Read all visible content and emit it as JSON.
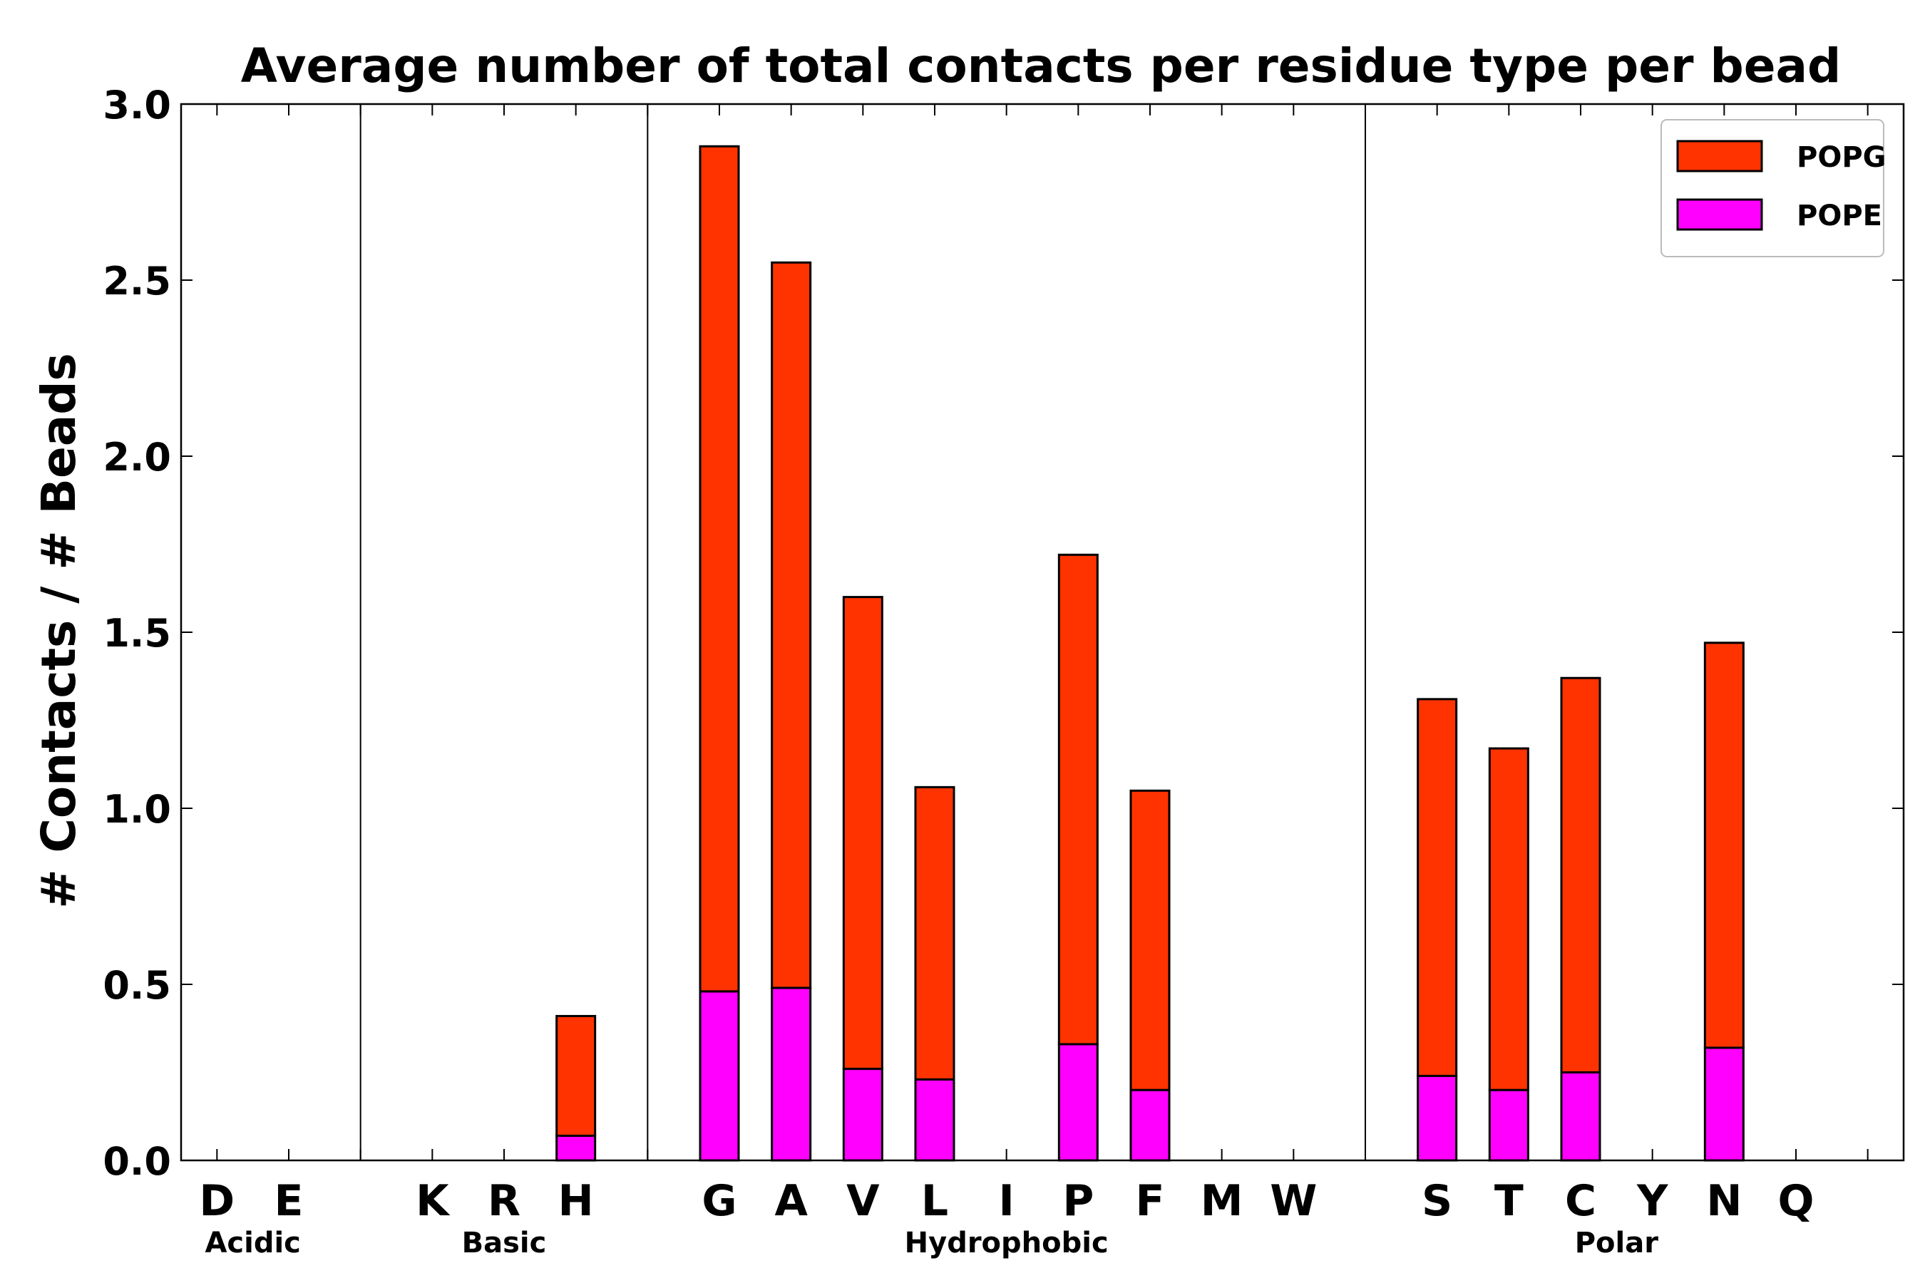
{
  "chart_data": {
    "type": "bar",
    "stacked": true,
    "title": "Average number of total contacts per residue type per bead",
    "xlabel": "",
    "ylabel": "# Contacts / # Beads",
    "ylim": [
      0,
      3.0
    ],
    "yticks": [
      "0.0",
      "0.5",
      "1.0",
      "1.5",
      "2.0",
      "2.5",
      "3.0"
    ],
    "grid": false,
    "legend_position": "top-right",
    "colors": {
      "POPG": "#ff3300",
      "POPE": "#ff00ff"
    },
    "categories": [
      "D",
      "E",
      "K",
      "R",
      "H",
      "G",
      "A",
      "V",
      "L",
      "I",
      "P",
      "F",
      "M",
      "W",
      "S",
      "T",
      "C",
      "Y",
      "N",
      "Q"
    ],
    "groups": [
      {
        "name": "Acidic",
        "members": [
          "D",
          "E"
        ]
      },
      {
        "name": "Basic",
        "members": [
          "K",
          "R",
          "H"
        ]
      },
      {
        "name": "Hydrophobic",
        "members": [
          "G",
          "A",
          "V",
          "L",
          "I",
          "P",
          "F",
          "M",
          "W"
        ]
      },
      {
        "name": "Polar",
        "members": [
          "S",
          "T",
          "C",
          "Y",
          "N",
          "Q"
        ]
      }
    ],
    "series": [
      {
        "name": "POPE",
        "values": [
          0,
          0,
          0,
          0,
          0.07,
          0.48,
          0.49,
          0.26,
          0.23,
          0,
          0.33,
          0.2,
          0,
          0,
          0.24,
          0.2,
          0.25,
          0,
          0.32,
          0
        ]
      },
      {
        "name": "POPG",
        "values": [
          0,
          0,
          0,
          0,
          0.34,
          2.4,
          2.06,
          1.34,
          0.83,
          0,
          1.39,
          0.85,
          0,
          0,
          1.07,
          0.97,
          1.12,
          0,
          1.15,
          0
        ]
      }
    ],
    "legend": [
      "POPG",
      "POPE"
    ]
  }
}
